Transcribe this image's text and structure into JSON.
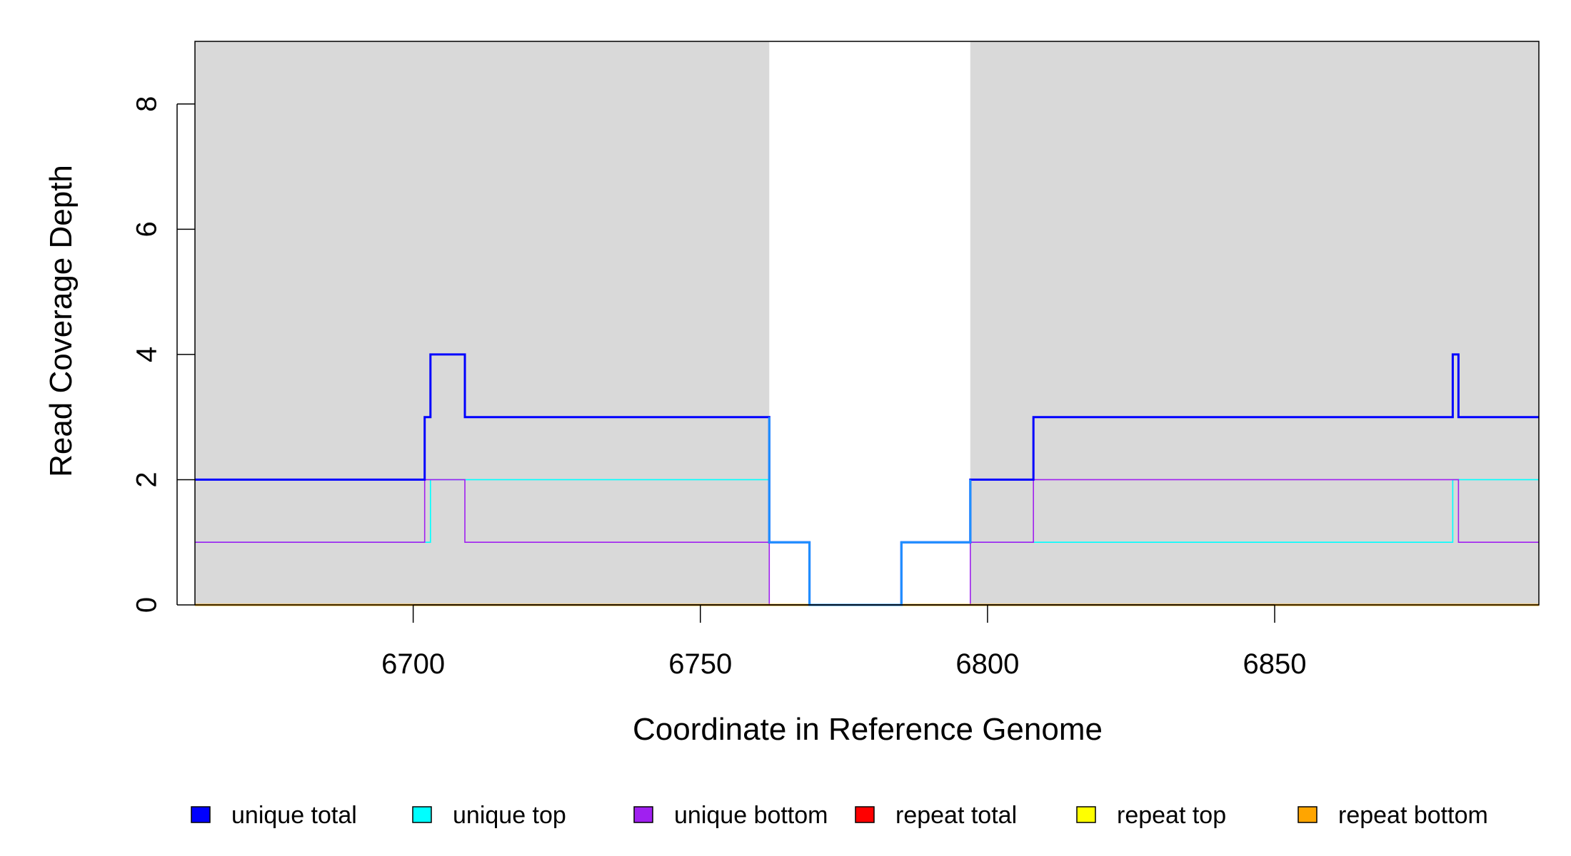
{
  "chart_data": {
    "type": "line",
    "title": "",
    "xlabel": "Coordinate in Reference Genome",
    "ylabel": "Read Coverage Depth",
    "xlim": [
      6662,
      6896
    ],
    "ylim": [
      0,
      9
    ],
    "x_ticks": [
      6700,
      6750,
      6800,
      6850
    ],
    "x_tick_labels": [
      "6700",
      "6750",
      "6800",
      "6850"
    ],
    "y_ticks": [
      0,
      2,
      4,
      6,
      8
    ],
    "y_tick_labels": [
      "0",
      "2",
      "4",
      "6",
      "8"
    ],
    "grid": false,
    "background_color": "#d9d9d9",
    "highlight_region": {
      "x": [
        6762,
        6797
      ],
      "color": "#ffffff"
    },
    "legend_position": "bottom",
    "series": [
      {
        "name": "unique total",
        "color": "#0000ff",
        "points": [
          [
            6662,
            2
          ],
          [
            6702,
            2
          ],
          [
            6702,
            3
          ],
          [
            6703,
            3
          ],
          [
            6703,
            4
          ],
          [
            6709,
            4
          ],
          [
            6709,
            3
          ],
          [
            6762,
            3
          ],
          [
            6762,
            1
          ],
          [
            6769,
            1
          ],
          [
            6769,
            0
          ],
          [
            6785,
            0
          ],
          [
            6785,
            1
          ],
          [
            6797,
            1
          ],
          [
            6797,
            2
          ],
          [
            6808,
            2
          ],
          [
            6808,
            3
          ],
          [
            6881,
            3
          ],
          [
            6881,
            4
          ],
          [
            6882,
            4
          ],
          [
            6882,
            3
          ],
          [
            6896,
            3
          ]
        ]
      },
      {
        "name": "unique top",
        "color": "#00ffff",
        "points": [
          [
            6662,
            1
          ],
          [
            6703,
            1
          ],
          [
            6703,
            2
          ],
          [
            6762,
            2
          ],
          [
            6762,
            1
          ],
          [
            6769,
            1
          ],
          [
            6769,
            0
          ],
          [
            6785,
            0
          ],
          [
            6785,
            1
          ],
          [
            6808,
            1
          ],
          [
            6881,
            1
          ],
          [
            6881,
            2
          ],
          [
            6896,
            2
          ]
        ]
      },
      {
        "name": "unique bottom",
        "color": "#a020f0",
        "points": [
          [
            6662,
            1
          ],
          [
            6702,
            1
          ],
          [
            6702,
            2
          ],
          [
            6709,
            2
          ],
          [
            6709,
            1
          ],
          [
            6762,
            1
          ],
          [
            6762,
            0
          ],
          [
            6797,
            0
          ],
          [
            6797,
            1
          ],
          [
            6808,
            1
          ],
          [
            6808,
            2
          ],
          [
            6882,
            2
          ],
          [
            6882,
            1
          ],
          [
            6896,
            1
          ]
        ]
      },
      {
        "name": "repeat total",
        "color": "#ff0000",
        "points": [
          [
            6662,
            0
          ],
          [
            6896,
            0
          ]
        ]
      },
      {
        "name": "repeat top",
        "color": "#ffff00",
        "points": [
          [
            6662,
            0
          ],
          [
            6896,
            0
          ]
        ]
      },
      {
        "name": "repeat bottom",
        "color": "#ffa500",
        "points": [
          [
            6662,
            0
          ],
          [
            6896,
            0
          ]
        ]
      }
    ]
  }
}
